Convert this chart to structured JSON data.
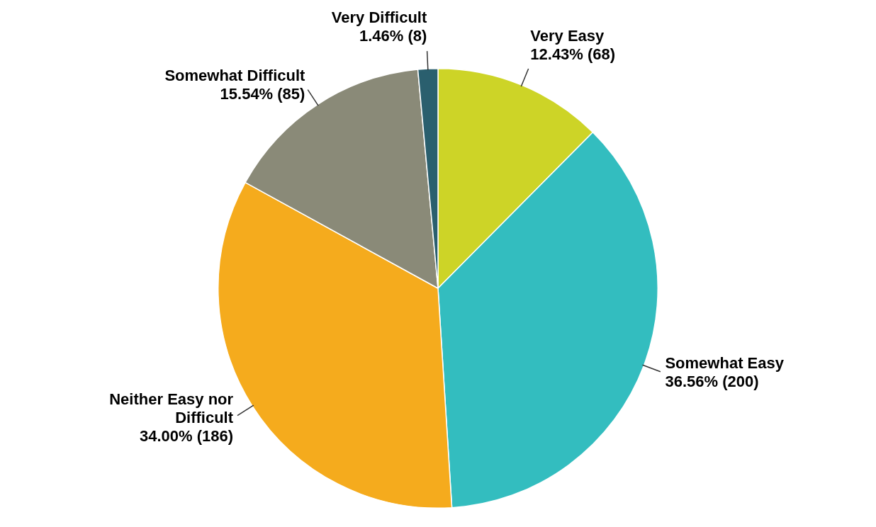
{
  "chart_data": {
    "type": "pie",
    "categories": [
      "Very Easy",
      "Somewhat Easy",
      "Neither Easy nor Difficult",
      "Somewhat Difficult",
      "Very Difficult"
    ],
    "values": [
      68,
      200,
      186,
      85,
      8
    ],
    "value_labels": [
      "12.43% (68)",
      "36.56% (200)",
      "34.00% (186)",
      "15.54% (85)",
      "1.46% (8)"
    ],
    "colors": [
      "#cdd427",
      "#33bdbf",
      "#f5ab1d",
      "#8a8a78",
      "#2a5f6e"
    ],
    "legend": false
  }
}
